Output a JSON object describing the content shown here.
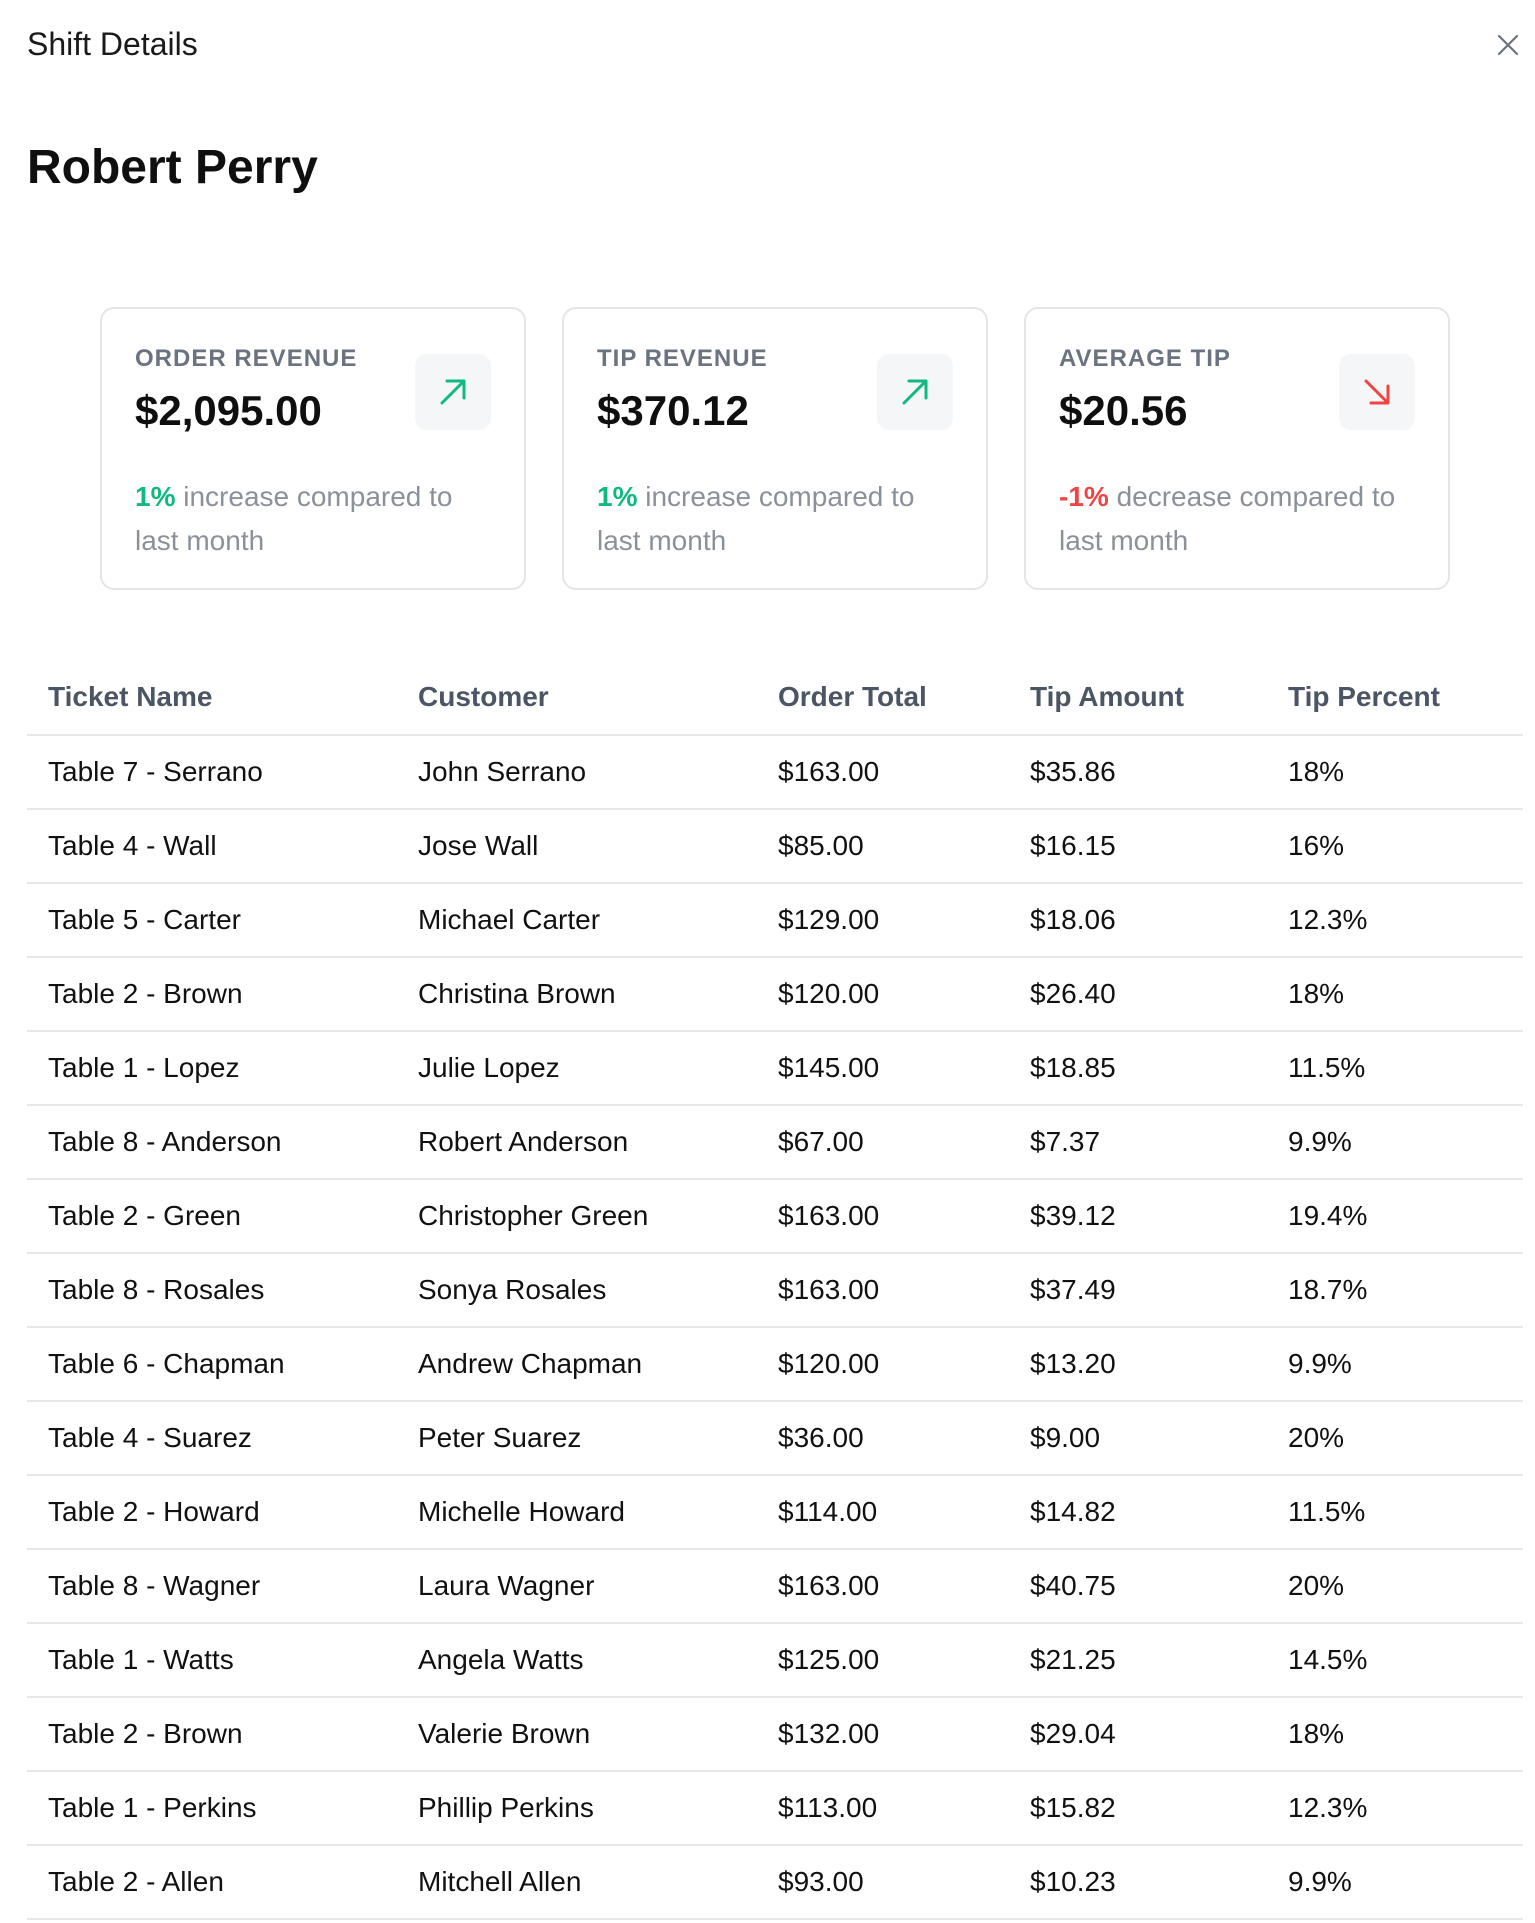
{
  "header": {
    "title": "Shift Details",
    "close_icon": "close-icon"
  },
  "person": {
    "name": "Robert Perry"
  },
  "colors": {
    "positive": "#10b981",
    "negative": "#ef4444"
  },
  "cards": [
    {
      "label": "ORDER REVENUE",
      "value": "$2,095.00",
      "delta": "1%",
      "delta_text": "increase compared to last month",
      "trend": "up",
      "icon": "arrow-up-right-icon"
    },
    {
      "label": "TIP REVENUE",
      "value": "$370.12",
      "delta": "1%",
      "delta_text": "increase compared to last month",
      "trend": "up",
      "icon": "arrow-up-right-icon"
    },
    {
      "label": "AVERAGE TIP",
      "value": "$20.56",
      "delta": "-1%",
      "delta_text": "decrease compared to last month",
      "trend": "down",
      "icon": "arrow-down-right-icon"
    }
  ],
  "table": {
    "columns": [
      "Ticket Name",
      "Customer",
      "Order Total",
      "Tip Amount",
      "Tip Percent"
    ],
    "rows": [
      [
        "Table 7 - Serrano",
        "John Serrano",
        "$163.00",
        "$35.86",
        "18%"
      ],
      [
        "Table 4 - Wall",
        "Jose Wall",
        "$85.00",
        "$16.15",
        "16%"
      ],
      [
        "Table 5 - Carter",
        "Michael Carter",
        "$129.00",
        "$18.06",
        "12.3%"
      ],
      [
        "Table 2 - Brown",
        "Christina Brown",
        "$120.00",
        "$26.40",
        "18%"
      ],
      [
        "Table 1 - Lopez",
        "Julie Lopez",
        "$145.00",
        "$18.85",
        "11.5%"
      ],
      [
        "Table 8 - Anderson",
        "Robert Anderson",
        "$67.00",
        "$7.37",
        "9.9%"
      ],
      [
        "Table 2 - Green",
        "Christopher Green",
        "$163.00",
        "$39.12",
        "19.4%"
      ],
      [
        "Table 8 - Rosales",
        "Sonya Rosales",
        "$163.00",
        "$37.49",
        "18.7%"
      ],
      [
        "Table 6 - Chapman",
        "Andrew Chapman",
        "$120.00",
        "$13.20",
        "9.9%"
      ],
      [
        "Table 4 - Suarez",
        "Peter Suarez",
        "$36.00",
        "$9.00",
        "20%"
      ],
      [
        "Table 2 - Howard",
        "Michelle Howard",
        "$114.00",
        "$14.82",
        "11.5%"
      ],
      [
        "Table 8 - Wagner",
        "Laura Wagner",
        "$163.00",
        "$40.75",
        "20%"
      ],
      [
        "Table 1 - Watts",
        "Angela Watts",
        "$125.00",
        "$21.25",
        "14.5%"
      ],
      [
        "Table 2 - Brown",
        "Valerie Brown",
        "$132.00",
        "$29.04",
        "18%"
      ],
      [
        "Table 1 - Perkins",
        "Phillip Perkins",
        "$113.00",
        "$15.82",
        "12.3%"
      ],
      [
        "Table 2 - Allen",
        "Mitchell Allen",
        "$93.00",
        "$10.23",
        "9.9%"
      ]
    ]
  }
}
